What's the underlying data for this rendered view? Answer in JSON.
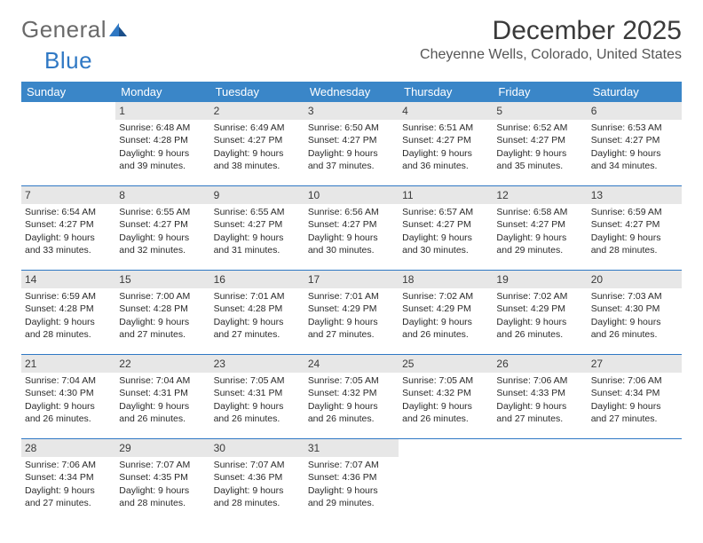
{
  "logo": {
    "word1": "General",
    "word2": "Blue"
  },
  "header": {
    "title": "December 2025",
    "location": "Cheyenne Wells, Colorado, United States"
  },
  "colors": {
    "header_bg": "#3a86c8",
    "header_text": "#ffffff",
    "rule": "#2f78c4",
    "daynum_bg": "#e7e7e7",
    "page_bg": "#ffffff",
    "logo_gray": "#6a6a6a",
    "logo_blue": "#2f78c4"
  },
  "weekdays": [
    "Sunday",
    "Monday",
    "Tuesday",
    "Wednesday",
    "Thursday",
    "Friday",
    "Saturday"
  ],
  "weeks": [
    [
      {
        "n": "",
        "sr": "",
        "ss": "",
        "dl": ""
      },
      {
        "n": "1",
        "sr": "6:48 AM",
        "ss": "4:28 PM",
        "dl": "9 hours and 39 minutes."
      },
      {
        "n": "2",
        "sr": "6:49 AM",
        "ss": "4:27 PM",
        "dl": "9 hours and 38 minutes."
      },
      {
        "n": "3",
        "sr": "6:50 AM",
        "ss": "4:27 PM",
        "dl": "9 hours and 37 minutes."
      },
      {
        "n": "4",
        "sr": "6:51 AM",
        "ss": "4:27 PM",
        "dl": "9 hours and 36 minutes."
      },
      {
        "n": "5",
        "sr": "6:52 AM",
        "ss": "4:27 PM",
        "dl": "9 hours and 35 minutes."
      },
      {
        "n": "6",
        "sr": "6:53 AM",
        "ss": "4:27 PM",
        "dl": "9 hours and 34 minutes."
      }
    ],
    [
      {
        "n": "7",
        "sr": "6:54 AM",
        "ss": "4:27 PM",
        "dl": "9 hours and 33 minutes."
      },
      {
        "n": "8",
        "sr": "6:55 AM",
        "ss": "4:27 PM",
        "dl": "9 hours and 32 minutes."
      },
      {
        "n": "9",
        "sr": "6:55 AM",
        "ss": "4:27 PM",
        "dl": "9 hours and 31 minutes."
      },
      {
        "n": "10",
        "sr": "6:56 AM",
        "ss": "4:27 PM",
        "dl": "9 hours and 30 minutes."
      },
      {
        "n": "11",
        "sr": "6:57 AM",
        "ss": "4:27 PM",
        "dl": "9 hours and 30 minutes."
      },
      {
        "n": "12",
        "sr": "6:58 AM",
        "ss": "4:27 PM",
        "dl": "9 hours and 29 minutes."
      },
      {
        "n": "13",
        "sr": "6:59 AM",
        "ss": "4:27 PM",
        "dl": "9 hours and 28 minutes."
      }
    ],
    [
      {
        "n": "14",
        "sr": "6:59 AM",
        "ss": "4:28 PM",
        "dl": "9 hours and 28 minutes."
      },
      {
        "n": "15",
        "sr": "7:00 AM",
        "ss": "4:28 PM",
        "dl": "9 hours and 27 minutes."
      },
      {
        "n": "16",
        "sr": "7:01 AM",
        "ss": "4:28 PM",
        "dl": "9 hours and 27 minutes."
      },
      {
        "n": "17",
        "sr": "7:01 AM",
        "ss": "4:29 PM",
        "dl": "9 hours and 27 minutes."
      },
      {
        "n": "18",
        "sr": "7:02 AM",
        "ss": "4:29 PM",
        "dl": "9 hours and 26 minutes."
      },
      {
        "n": "19",
        "sr": "7:02 AM",
        "ss": "4:29 PM",
        "dl": "9 hours and 26 minutes."
      },
      {
        "n": "20",
        "sr": "7:03 AM",
        "ss": "4:30 PM",
        "dl": "9 hours and 26 minutes."
      }
    ],
    [
      {
        "n": "21",
        "sr": "7:04 AM",
        "ss": "4:30 PM",
        "dl": "9 hours and 26 minutes."
      },
      {
        "n": "22",
        "sr": "7:04 AM",
        "ss": "4:31 PM",
        "dl": "9 hours and 26 minutes."
      },
      {
        "n": "23",
        "sr": "7:05 AM",
        "ss": "4:31 PM",
        "dl": "9 hours and 26 minutes."
      },
      {
        "n": "24",
        "sr": "7:05 AM",
        "ss": "4:32 PM",
        "dl": "9 hours and 26 minutes."
      },
      {
        "n": "25",
        "sr": "7:05 AM",
        "ss": "4:32 PM",
        "dl": "9 hours and 26 minutes."
      },
      {
        "n": "26",
        "sr": "7:06 AM",
        "ss": "4:33 PM",
        "dl": "9 hours and 27 minutes."
      },
      {
        "n": "27",
        "sr": "7:06 AM",
        "ss": "4:34 PM",
        "dl": "9 hours and 27 minutes."
      }
    ],
    [
      {
        "n": "28",
        "sr": "7:06 AM",
        "ss": "4:34 PM",
        "dl": "9 hours and 27 minutes."
      },
      {
        "n": "29",
        "sr": "7:07 AM",
        "ss": "4:35 PM",
        "dl": "9 hours and 28 minutes."
      },
      {
        "n": "30",
        "sr": "7:07 AM",
        "ss": "4:36 PM",
        "dl": "9 hours and 28 minutes."
      },
      {
        "n": "31",
        "sr": "7:07 AM",
        "ss": "4:36 PM",
        "dl": "9 hours and 29 minutes."
      },
      {
        "n": "",
        "sr": "",
        "ss": "",
        "dl": ""
      },
      {
        "n": "",
        "sr": "",
        "ss": "",
        "dl": ""
      },
      {
        "n": "",
        "sr": "",
        "ss": "",
        "dl": ""
      }
    ]
  ],
  "labels": {
    "sunrise": "Sunrise:",
    "sunset": "Sunset:",
    "daylight": "Daylight:"
  }
}
